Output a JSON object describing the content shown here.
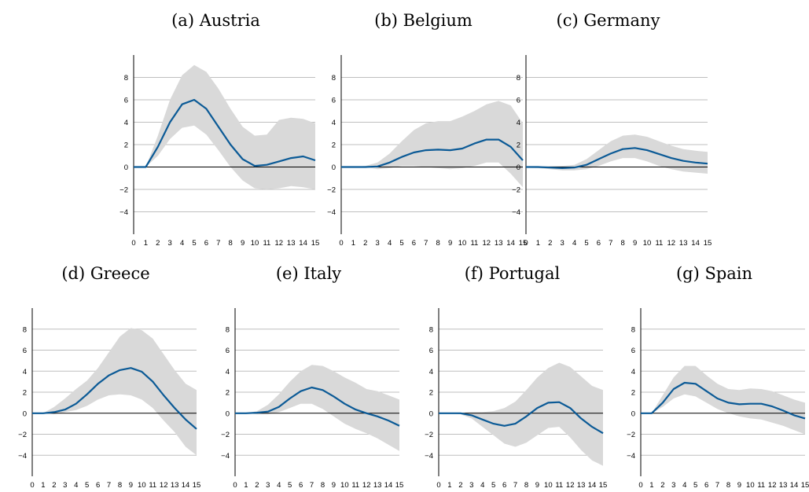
{
  "colors": {
    "line": "#0b5a96",
    "band": "#d9d9d9",
    "grid": "#bfbfbf",
    "zero": "#000000"
  },
  "chart_data": [
    {
      "type": "line",
      "title": "(a) Austria",
      "x": [
        0,
        1,
        2,
        3,
        4,
        5,
        6,
        7,
        8,
        9,
        10,
        11,
        12,
        13,
        14,
        15
      ],
      "series": [
        {
          "values": [
            0,
            0,
            1.8,
            4.0,
            5.6,
            6.0,
            5.2,
            3.6,
            2.0,
            0.7,
            0.1,
            0.2,
            0.5,
            0.8,
            0.95,
            0.6
          ]
        }
      ],
      "band_upper": [
        0,
        0,
        2.8,
        6.0,
        8.2,
        9.1,
        8.5,
        7.0,
        5.2,
        3.6,
        2.8,
        2.9,
        4.2,
        4.4,
        4.3,
        3.9
      ],
      "band_lower": [
        0,
        0,
        1.0,
        2.5,
        3.5,
        3.7,
        2.9,
        1.5,
        0.0,
        -1.2,
        -1.9,
        -2.0,
        -1.9,
        -1.7,
        -1.8,
        -2.0
      ],
      "xticks": [
        0,
        1,
        2,
        3,
        4,
        5,
        6,
        7,
        8,
        9,
        10,
        11,
        12,
        13,
        14,
        15
      ],
      "yticks": [
        -4,
        -2,
        0,
        2,
        4,
        6,
        8
      ],
      "ylim": [
        -6,
        10
      ],
      "grid": true
    },
    {
      "type": "line",
      "title": "(b) Belgium",
      "x": [
        0,
        1,
        2,
        3,
        4,
        5,
        6,
        7,
        8,
        9,
        10,
        11,
        12,
        13,
        14,
        15
      ],
      "series": [
        {
          "values": [
            0,
            0,
            0,
            0.05,
            0.4,
            0.9,
            1.3,
            1.5,
            1.55,
            1.5,
            1.65,
            2.1,
            2.45,
            2.45,
            1.8,
            0.6
          ]
        }
      ],
      "band_upper": [
        0,
        0,
        0.1,
        0.4,
        1.2,
        2.3,
        3.3,
        3.9,
        4.1,
        4.1,
        4.5,
        5.0,
        5.6,
        5.9,
        5.5,
        3.9
      ],
      "band_lower": [
        0,
        0,
        0,
        -0.2,
        -0.1,
        0.1,
        0.1,
        0.0,
        -0.1,
        -0.2,
        -0.1,
        0.1,
        0.4,
        0.4,
        -0.6,
        -1.8
      ],
      "xticks": [
        0,
        1,
        2,
        3,
        4,
        5,
        6,
        7,
        8,
        9,
        10,
        11,
        12,
        13,
        14,
        15
      ],
      "yticks": [
        -4,
        -2,
        0,
        2,
        4,
        6,
        8
      ],
      "ylim": [
        -6,
        10
      ],
      "grid": true
    },
    {
      "type": "line",
      "title": "(c) Germany",
      "x": [
        0,
        1,
        2,
        3,
        4,
        5,
        6,
        7,
        8,
        9,
        10,
        11,
        12,
        13,
        14,
        15
      ],
      "series": [
        {
          "values": [
            0,
            0,
            -0.05,
            -0.1,
            -0.05,
            0.2,
            0.7,
            1.2,
            1.6,
            1.7,
            1.5,
            1.15,
            0.8,
            0.55,
            0.4,
            0.3
          ]
        }
      ],
      "band_upper": [
        0.05,
        0.05,
        0.1,
        0.1,
        0.2,
        0.7,
        1.5,
        2.3,
        2.8,
        2.9,
        2.7,
        2.3,
        1.9,
        1.6,
        1.45,
        1.35
      ],
      "band_lower": [
        -0.05,
        -0.1,
        -0.2,
        -0.3,
        -0.3,
        -0.2,
        0.1,
        0.5,
        0.8,
        0.8,
        0.5,
        0.1,
        -0.2,
        -0.4,
        -0.5,
        -0.6
      ],
      "xticks": [
        0,
        1,
        2,
        3,
        4,
        5,
        6,
        7,
        8,
        9,
        10,
        11,
        12,
        13,
        14,
        15
      ],
      "yticks": [
        -4,
        -2,
        0,
        2,
        4,
        6,
        8
      ],
      "ylim": [
        -6,
        10
      ],
      "grid": true
    },
    {
      "type": "line",
      "title": "(d) Greece",
      "x": [
        0,
        1,
        2,
        3,
        4,
        5,
        6,
        7,
        8,
        9,
        10,
        11,
        12,
        13,
        14,
        15
      ],
      "series": [
        {
          "values": [
            0,
            0,
            0.1,
            0.35,
            0.9,
            1.8,
            2.8,
            3.6,
            4.1,
            4.3,
            3.95,
            3.0,
            1.7,
            0.5,
            -0.6,
            -1.5
          ]
        }
      ],
      "band_upper": [
        0,
        0,
        0.6,
        1.4,
        2.3,
        3.1,
        4.3,
        5.8,
        7.3,
        8.1,
        7.9,
        7.1,
        5.6,
        4.1,
        2.8,
        2.2
      ],
      "band_lower": [
        0,
        0,
        -0.1,
        0.1,
        0.3,
        0.7,
        1.3,
        1.7,
        1.8,
        1.7,
        1.3,
        0.5,
        -0.7,
        -1.8,
        -3.2,
        -4.0
      ],
      "xticks": [
        0,
        1,
        2,
        3,
        4,
        5,
        6,
        7,
        8,
        9,
        10,
        11,
        12,
        13,
        14,
        15
      ],
      "yticks": [
        -4,
        -2,
        0,
        2,
        4,
        6,
        8
      ],
      "ylim": [
        -6,
        10
      ],
      "grid": true
    },
    {
      "type": "line",
      "title": "(e) Italy",
      "x": [
        0,
        1,
        2,
        3,
        4,
        5,
        6,
        7,
        8,
        9,
        10,
        11,
        12,
        13,
        14,
        15
      ],
      "series": [
        {
          "values": [
            0,
            0,
            0.05,
            0.15,
            0.6,
            1.4,
            2.1,
            2.45,
            2.2,
            1.6,
            0.9,
            0.35,
            0.0,
            -0.3,
            -0.7,
            -1.2
          ]
        }
      ],
      "band_upper": [
        0,
        0,
        0.2,
        0.8,
        1.8,
        3.0,
        4.0,
        4.6,
        4.5,
        4.0,
        3.4,
        2.9,
        2.3,
        2.1,
        1.7,
        1.3
      ],
      "band_lower": [
        0,
        0,
        -0.1,
        -0.1,
        0.1,
        0.5,
        0.9,
        0.9,
        0.4,
        -0.3,
        -1.0,
        -1.5,
        -1.9,
        -2.4,
        -3.0,
        -3.6
      ],
      "xticks": [
        0,
        1,
        2,
        3,
        4,
        5,
        6,
        7,
        8,
        9,
        10,
        11,
        12,
        13,
        14,
        15
      ],
      "yticks": [
        -4,
        -2,
        0,
        2,
        4,
        6,
        8
      ],
      "ylim": [
        -6,
        10
      ],
      "grid": true
    },
    {
      "type": "line",
      "title": "(f) Portugal",
      "x": [
        0,
        1,
        2,
        3,
        4,
        5,
        6,
        7,
        8,
        9,
        10,
        11,
        12,
        13,
        14,
        15
      ],
      "series": [
        {
          "values": [
            0,
            0,
            0,
            -0.2,
            -0.6,
            -1.0,
            -1.2,
            -1.0,
            -0.3,
            0.5,
            1.0,
            1.05,
            0.5,
            -0.5,
            -1.3,
            -1.9
          ]
        }
      ],
      "band_upper": [
        0,
        0,
        0.05,
        0.1,
        0.1,
        0.2,
        0.5,
        1.1,
        2.2,
        3.4,
        4.3,
        4.8,
        4.4,
        3.5,
        2.6,
        2.2
      ],
      "band_lower": [
        0,
        0,
        -0.1,
        -0.5,
        -1.3,
        -2.1,
        -2.9,
        -3.2,
        -2.8,
        -2.1,
        -1.4,
        -1.3,
        -2.3,
        -3.5,
        -4.5,
        -5.0
      ],
      "xticks": [
        0,
        1,
        2,
        3,
        4,
        5,
        6,
        7,
        8,
        9,
        10,
        11,
        12,
        13,
        14,
        15
      ],
      "yticks": [
        -4,
        -2,
        0,
        2,
        4,
        6,
        8
      ],
      "ylim": [
        -6,
        10
      ],
      "grid": true
    },
    {
      "type": "line",
      "title": "(g) Spain",
      "x": [
        0,
        1,
        2,
        3,
        4,
        5,
        6,
        7,
        8,
        9,
        10,
        11,
        12,
        13,
        14,
        15
      ],
      "series": [
        {
          "values": [
            0,
            0,
            1.0,
            2.3,
            2.9,
            2.8,
            2.1,
            1.4,
            1.0,
            0.85,
            0.9,
            0.9,
            0.65,
            0.25,
            -0.2,
            -0.5
          ]
        }
      ],
      "band_upper": [
        0,
        0,
        1.7,
        3.4,
        4.5,
        4.5,
        3.6,
        2.8,
        2.3,
        2.2,
        2.35,
        2.3,
        2.1,
        1.7,
        1.3,
        1.0
      ],
      "band_lower": [
        0,
        0,
        0.6,
        1.4,
        1.8,
        1.6,
        1.0,
        0.4,
        0.0,
        -0.3,
        -0.5,
        -0.6,
        -0.9,
        -1.2,
        -1.6,
        -2.0
      ],
      "xticks": [
        0,
        1,
        2,
        3,
        4,
        5,
        6,
        7,
        8,
        9,
        10,
        11,
        12,
        13,
        14,
        15
      ],
      "yticks": [
        -4,
        -2,
        0,
        2,
        4,
        6,
        8
      ],
      "ylim": [
        -6,
        10
      ],
      "grid": true
    }
  ]
}
